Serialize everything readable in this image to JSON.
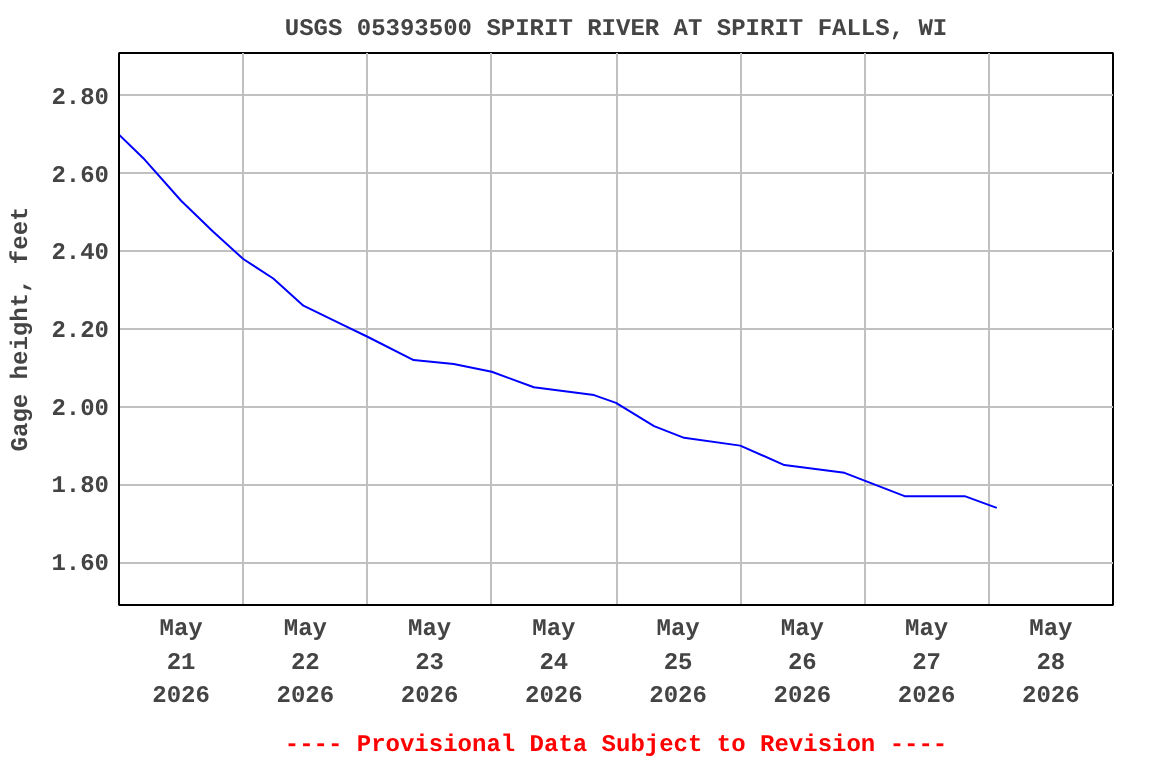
{
  "chart_data": {
    "type": "line",
    "title": "USGS 05393500 SPIRIT RIVER AT SPIRIT FALLS, WI",
    "ylabel": "Gage height, feet",
    "annotations": [
      "---- Provisional Data Subject to Revision ----"
    ],
    "x": [
      "2026-05-21T00:00",
      "2026-05-21T04:39",
      "2026-05-21T12:00",
      "2026-05-21T18:12",
      "2026-05-22T00:00",
      "2026-05-22T05:48",
      "2026-05-22T11:37",
      "2026-05-22T19:21",
      "2026-05-23T00:00",
      "2026-05-23T08:54",
      "2026-05-23T16:39",
      "2026-05-24T00:00",
      "2026-05-24T08:08",
      "2026-05-24T19:45",
      "2026-05-25T00:00",
      "2026-05-25T07:21",
      "2026-05-25T13:09",
      "2026-05-26T00:00",
      "2026-05-26T08:31",
      "2026-05-26T20:08",
      "2026-05-27T00:00",
      "2026-05-27T07:45",
      "2026-05-27T19:21",
      "2026-05-28T01:33"
    ],
    "series": [
      {
        "color": "#0000ff",
        "values": [
          2.7,
          2.64,
          2.53,
          2.45,
          2.38,
          2.33,
          2.26,
          2.21,
          2.18,
          2.12,
          2.11,
          2.09,
          2.05,
          2.03,
          2.01,
          1.95,
          1.92,
          1.9,
          1.85,
          1.83,
          1.81,
          1.77,
          1.77,
          1.74
        ]
      }
    ],
    "xlim": [
      "2026-05-21T00:00",
      "2026-05-29T00:00"
    ],
    "xticks": [
      {
        "value": "2026-05-21T00:00",
        "label": null
      },
      {
        "value": "2026-05-21T12:00",
        "label": "May\n21\n2026"
      },
      {
        "value": "2026-05-22T00:00",
        "label": null
      },
      {
        "value": "2026-05-22T12:00",
        "label": "May\n22\n2026"
      },
      {
        "value": "2026-05-23T00:00",
        "label": null
      },
      {
        "value": "2026-05-23T12:00",
        "label": "May\n23\n2026"
      },
      {
        "value": "2026-05-24T00:00",
        "label": null
      },
      {
        "value": "2026-05-24T12:00",
        "label": "May\n24\n2026"
      },
      {
        "value": "2026-05-25T00:00",
        "label": null
      },
      {
        "value": "2026-05-25T12:00",
        "label": "May\n25\n2026"
      },
      {
        "value": "2026-05-26T00:00",
        "label": null
      },
      {
        "value": "2026-05-26T12:00",
        "label": "May\n26\n2026"
      },
      {
        "value": "2026-05-27T00:00",
        "label": null
      },
      {
        "value": "2026-05-27T12:00",
        "label": "May\n27\n2026"
      },
      {
        "value": "2026-05-28T00:00",
        "label": null
      },
      {
        "value": "2026-05-28T12:00",
        "label": "May\n28\n2026"
      },
      {
        "value": "2026-05-29T00:00",
        "label": null
      }
    ],
    "ylim": [
      1.49,
      2.91
    ],
    "yticks": [
      {
        "value": 1.6,
        "label": "1.60"
      },
      {
        "value": 1.8,
        "label": "1.80"
      },
      {
        "value": 2.0,
        "label": "2.00"
      },
      {
        "value": 2.2,
        "label": "2.20"
      },
      {
        "value": 2.4,
        "label": "2.40"
      },
      {
        "value": 2.6,
        "label": "2.60"
      },
      {
        "value": 2.8,
        "label": "2.80"
      }
    ],
    "grid": true
  }
}
